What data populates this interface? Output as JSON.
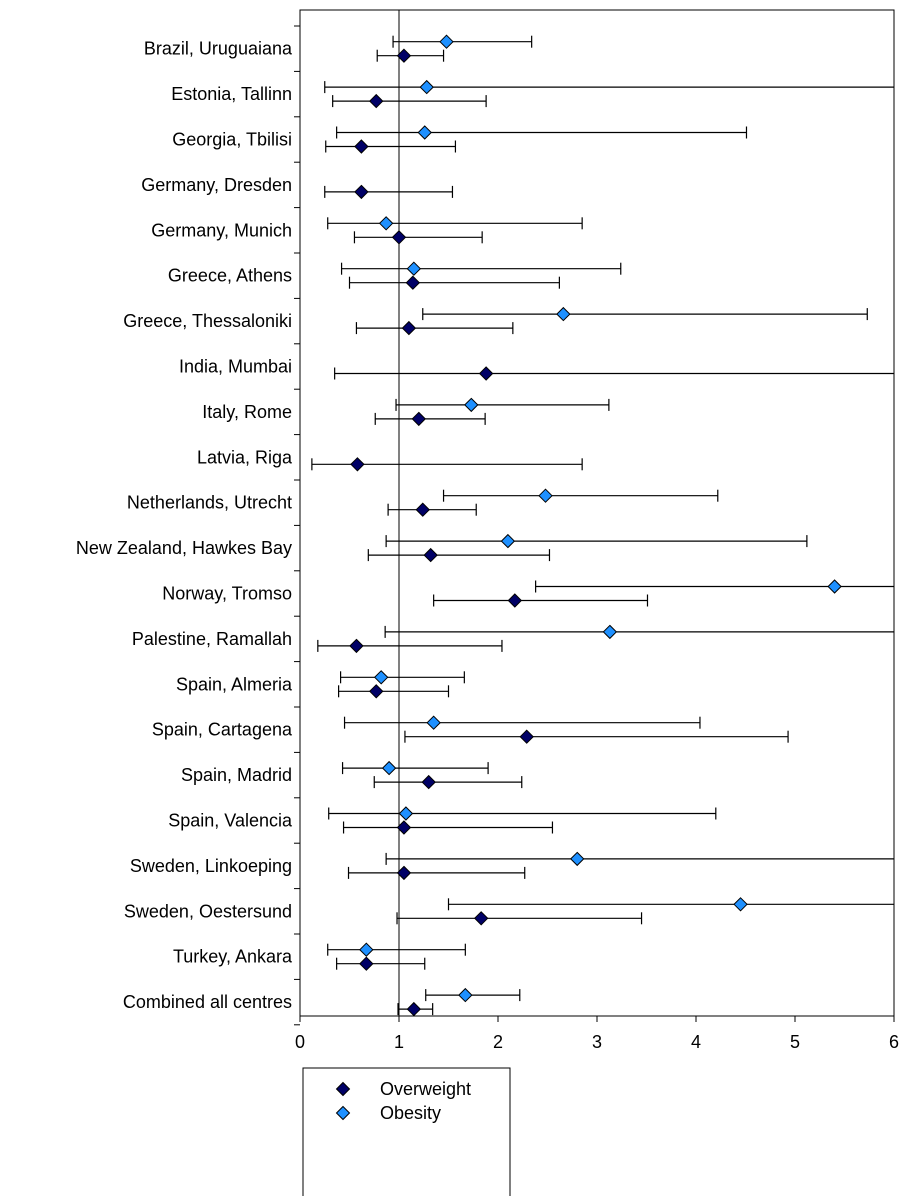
{
  "chart_data": {
    "type": "scatter",
    "orientation": "horizontal",
    "title": "",
    "xlabel": "",
    "ylabel": "",
    "xlim": [
      0,
      6
    ],
    "x_ticks": [
      "0",
      "1",
      "2",
      "3",
      "4",
      "5",
      "6"
    ],
    "reference_line_x": 1,
    "grid": false,
    "legend_position": "bottom-left",
    "categories": [
      "Brazil, Uruguaiana",
      "Estonia, Tallinn",
      "Georgia, Tbilisi",
      "Germany, Dresden",
      "Germany, Munich",
      "Greece, Athens",
      "Greece, Thessaloniki",
      "India, Mumbai",
      "Italy, Rome",
      "Latvia, Riga",
      "Netherlands, Utrecht",
      "New Zealand, Hawkes Bay",
      "Norway, Tromso",
      "Palestine, Ramallah",
      "Spain, Almeria",
      "Spain, Cartagena",
      "Spain, Madrid",
      "Spain, Valencia",
      "Sweden, Linkoeping",
      "Sweden, Oestersund",
      "Turkey, Ankara",
      "Combined all centres"
    ],
    "highlight_category": "Combined all centres",
    "highlight_color": "#ff0000",
    "series": [
      {
        "name": "Overweight",
        "color": "#000066",
        "values": [
          1.05,
          0.77,
          0.62,
          0.62,
          1.0,
          1.14,
          1.1,
          1.88,
          1.2,
          0.58,
          1.24,
          1.32,
          2.17,
          0.57,
          0.77,
          2.29,
          1.3,
          1.05,
          1.05,
          1.83,
          0.67,
          1.15
        ],
        "lower": [
          0.78,
          0.33,
          0.26,
          0.25,
          0.55,
          0.5,
          0.57,
          0.35,
          0.76,
          0.12,
          0.89,
          0.69,
          1.35,
          0.18,
          0.39,
          1.06,
          0.75,
          0.44,
          0.49,
          0.98,
          0.37,
          0.99
        ],
        "upper": [
          1.45,
          1.88,
          1.57,
          1.54,
          1.84,
          2.62,
          2.15,
          6.0,
          1.87,
          2.85,
          1.78,
          2.52,
          3.51,
          2.04,
          1.5,
          4.93,
          2.24,
          2.55,
          2.27,
          3.45,
          1.26,
          1.34
        ]
      },
      {
        "name": "Obesity",
        "color": "#1e90ff",
        "values": [
          1.48,
          1.28,
          1.26,
          null,
          0.87,
          1.15,
          2.66,
          null,
          1.73,
          null,
          2.48,
          2.1,
          5.4,
          3.13,
          0.82,
          1.35,
          0.9,
          1.07,
          2.8,
          4.45,
          0.67,
          1.67
        ],
        "lower": [
          0.94,
          0.25,
          0.37,
          null,
          0.28,
          0.42,
          1.24,
          null,
          0.97,
          null,
          1.45,
          0.87,
          2.38,
          0.86,
          0.41,
          0.45,
          0.43,
          0.29,
          0.87,
          1.5,
          0.28,
          1.27
        ],
        "upper": [
          2.34,
          6.0,
          4.51,
          null,
          2.85,
          3.24,
          5.73,
          null,
          3.12,
          null,
          4.22,
          5.12,
          6.0,
          6.0,
          1.66,
          4.04,
          1.9,
          4.2,
          6.0,
          6.0,
          1.67,
          2.22
        ]
      }
    ]
  }
}
